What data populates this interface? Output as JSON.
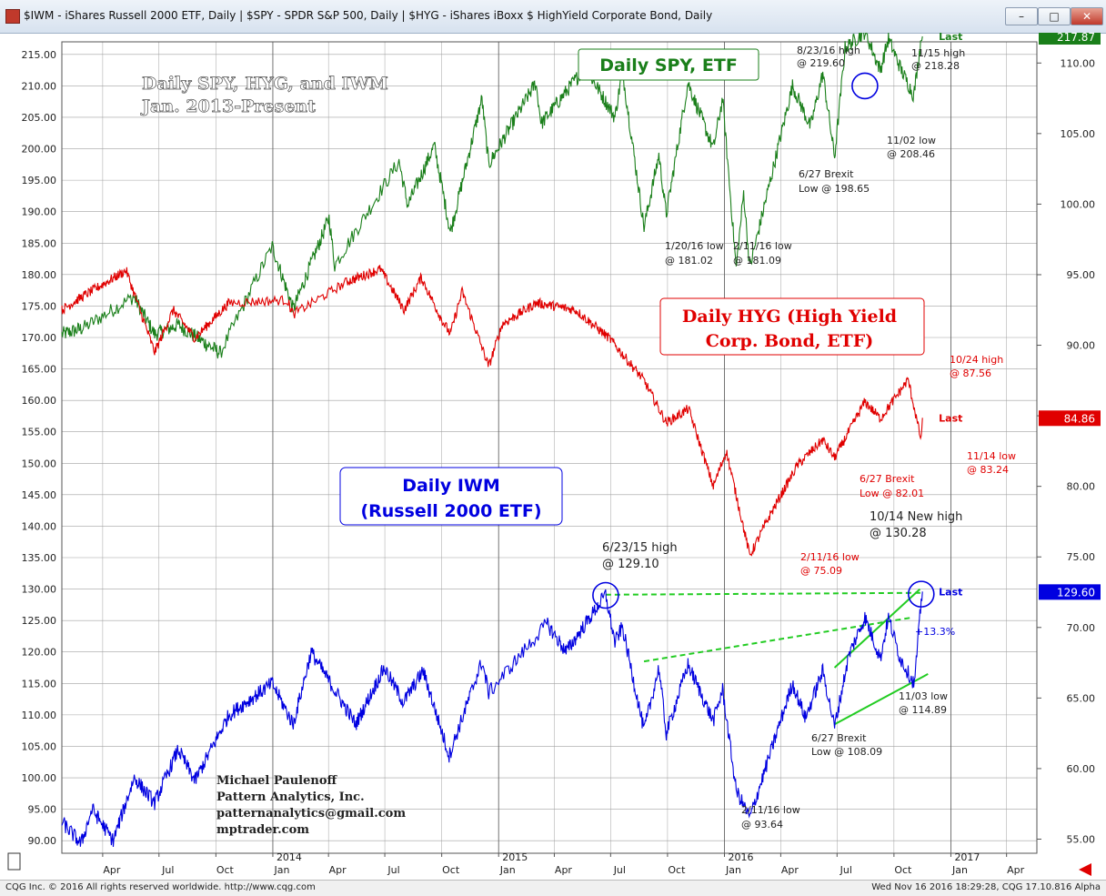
{
  "window": {
    "title": "$IWM - iShares Russell 2000 ETF, Daily  |  $SPY - SPDR S&P 500, Daily  |  $HYG - iShares iBoxx $ HighYield Corporate Bond, Daily",
    "buttons": {
      "minimize": "–",
      "maximize": "□",
      "close": "✕"
    }
  },
  "footer": {
    "left": "CQG Inc. © 2016 All rights reserved worldwide. http://www.cqg.com",
    "right": "Wed Nov 16 2016 18:29:28, CQG 17.10.816 Alpha"
  },
  "colors": {
    "spy": "#1a7f1a",
    "hyg": "#e00000",
    "iwm": "#0000e0",
    "guide": "#22cc22",
    "grid": "#a0a0a0"
  },
  "chart_data": {
    "type": "line",
    "main_title": [
      "Daily SPY, HYG, and IWM",
      "Jan. 2013-Present"
    ],
    "left_axis": {
      "ticks": [
        "215.00",
        "210.00",
        "205.00",
        "200.00",
        "195.00",
        "190.00",
        "185.00",
        "180.00",
        "175.00",
        "170.00",
        "165.00",
        "160.00",
        "155.00",
        "150.00",
        "145.00",
        "140.00",
        "135.00",
        "130.00",
        "125.00",
        "120.00",
        "115.00",
        "110.00",
        "105.00",
        "100.00",
        "95.00",
        "90.00"
      ],
      "range": [
        88,
        217
      ]
    },
    "right_axis": {
      "ticks": [
        "110.00",
        "105.00",
        "100.00",
        "95.00",
        "90.00",
        "85.00",
        "80.00",
        "75.00",
        "70.00",
        "65.00",
        "60.00",
        "55.00"
      ],
      "range": [
        54,
        111.5
      ]
    },
    "x_axis": {
      "month_ticks": [
        "Apr",
        "Jul",
        "Oct",
        "Jan",
        "Apr",
        "Jul",
        "Oct",
        "Jan",
        "Apr",
        "Jul",
        "Oct",
        "Jan",
        "Apr",
        "Jul",
        "Oct",
        "Jan",
        "Apr"
      ],
      "year_ticks": [
        "2014",
        "2015",
        "2016",
        "2017"
      ],
      "range": [
        "2013-01-25",
        "2017-05-20"
      ]
    },
    "series": [
      {
        "name": "Daily SPY, ETF",
        "axis": "left",
        "color": "#1a7f1a",
        "last_label": "Last",
        "last_value": "217.87",
        "points": [
          [
            "2013-01-25",
            170.5
          ],
          [
            "2013-03-01",
            171.5
          ],
          [
            "2013-05-21",
            176.5
          ],
          [
            "2013-06-24",
            170.5
          ],
          [
            "2013-08-01",
            172
          ],
          [
            "2013-10-08",
            167.5
          ],
          [
            "2013-12-31",
            184.5
          ],
          [
            "2014-02-03",
            174.5
          ],
          [
            "2014-04-02",
            189
          ],
          [
            "2014-04-11",
            181.5
          ],
          [
            "2014-07-24",
            198
          ],
          [
            "2014-08-07",
            191
          ],
          [
            "2014-09-19",
            200.5
          ],
          [
            "2014-10-15",
            186.7
          ],
          [
            "2014-12-05",
            208
          ],
          [
            "2014-12-16",
            197.5
          ],
          [
            "2015-03-02",
            210.5
          ],
          [
            "2015-03-11",
            204
          ],
          [
            "2015-05-21",
            213
          ],
          [
            "2015-07-08",
            205
          ],
          [
            "2015-07-20",
            212.5
          ],
          [
            "2015-08-24",
            187.5
          ],
          [
            "2015-09-17",
            199
          ],
          [
            "2015-09-29",
            189.5
          ],
          [
            "2015-11-03",
            210.5
          ],
          [
            "2015-12-14",
            200
          ],
          [
            "2015-12-29",
            208
          ],
          [
            "2016-01-20",
            181.02
          ],
          [
            "2016-02-01",
            193
          ],
          [
            "2016-02-11",
            181.09
          ],
          [
            "2016-04-20",
            210
          ],
          [
            "2016-05-19",
            203.5
          ],
          [
            "2016-06-08",
            212
          ],
          [
            "2016-06-27",
            198.65
          ],
          [
            "2016-07-14",
            216
          ],
          [
            "2016-08-15",
            218.6
          ],
          [
            "2016-09-09",
            212.5
          ],
          [
            "2016-09-22",
            217.5
          ],
          [
            "2016-10-13",
            212.5
          ],
          [
            "2016-11-02",
            208.46
          ],
          [
            "2016-11-15",
            218.28
          ],
          [
            "2016-11-16",
            217.87
          ]
        ]
      },
      {
        "name": "Daily HYG (High Yield Corp. Bond, ETF)",
        "axis": "right",
        "color": "#e00000",
        "last_label": "Last",
        "last_value": "84.86",
        "points": [
          [
            "2013-01-25",
            92.5
          ],
          [
            "2013-03-01",
            93.5
          ],
          [
            "2013-05-09",
            95.3
          ],
          [
            "2013-06-24",
            89.5
          ],
          [
            "2013-07-24",
            92.5
          ],
          [
            "2013-08-28",
            90.5
          ],
          [
            "2013-10-22",
            93
          ],
          [
            "2014-01-24",
            93.2
          ],
          [
            "2014-02-03",
            92.2
          ],
          [
            "2014-05-01",
            94.5
          ],
          [
            "2014-06-24",
            95.4
          ],
          [
            "2014-08-01",
            92.5
          ],
          [
            "2014-08-29",
            94.8
          ],
          [
            "2014-10-01",
            91.8
          ],
          [
            "2014-10-15",
            90.8
          ],
          [
            "2014-11-03",
            93.8
          ],
          [
            "2014-12-16",
            88.5
          ],
          [
            "2015-01-07",
            91.5
          ],
          [
            "2015-03-03",
            93
          ],
          [
            "2015-05-05",
            92.5
          ],
          [
            "2015-06-29",
            90.5
          ],
          [
            "2015-08-24",
            87.5
          ],
          [
            "2015-09-29",
            84.5
          ],
          [
            "2015-11-04",
            85.5
          ],
          [
            "2015-12-14",
            80
          ],
          [
            "2016-01-04",
            82.5
          ],
          [
            "2016-02-11",
            75.09
          ],
          [
            "2016-03-15",
            78
          ],
          [
            "2016-04-28",
            81.5
          ],
          [
            "2016-06-08",
            83.3
          ],
          [
            "2016-06-27",
            82.01
          ],
          [
            "2016-08-15",
            86
          ],
          [
            "2016-09-09",
            84.8
          ],
          [
            "2016-10-24",
            87.56
          ],
          [
            "2016-11-14",
            83.24
          ],
          [
            "2016-11-16",
            84.86
          ]
        ]
      },
      {
        "name": "Daily IWM (Russell 2000 ETF)",
        "axis": "left",
        "color": "#0000e0",
        "last_label": "Last",
        "last_value": "129.60",
        "points": [
          [
            "2013-01-25",
            93
          ],
          [
            "2013-02-25",
            89.5
          ],
          [
            "2013-03-15",
            95
          ],
          [
            "2013-04-18",
            90
          ],
          [
            "2013-05-22",
            100
          ],
          [
            "2013-06-24",
            96
          ],
          [
            "2013-08-01",
            104.5
          ],
          [
            "2013-08-28",
            99.5
          ],
          [
            "2013-10-22",
            110
          ],
          [
            "2013-12-31",
            115
          ],
          [
            "2014-02-03",
            108.5
          ],
          [
            "2014-03-04",
            120
          ],
          [
            "2014-05-15",
            108.5
          ],
          [
            "2014-06-30",
            117.5
          ],
          [
            "2014-07-31",
            112
          ],
          [
            "2014-09-01",
            117
          ],
          [
            "2014-10-13",
            103.5
          ],
          [
            "2014-12-05",
            118.5
          ],
          [
            "2014-12-16",
            113.5
          ],
          [
            "2015-03-20",
            124.5
          ],
          [
            "2015-04-20",
            120
          ],
          [
            "2015-06-23",
            129.1
          ],
          [
            "2015-07-08",
            121.5
          ],
          [
            "2015-07-20",
            124
          ],
          [
            "2015-08-24",
            107.5
          ],
          [
            "2015-09-17",
            117.5
          ],
          [
            "2015-09-29",
            107
          ],
          [
            "2015-11-03",
            118
          ],
          [
            "2015-12-14",
            109
          ],
          [
            "2015-12-29",
            114
          ],
          [
            "2016-01-20",
            98
          ],
          [
            "2016-02-11",
            93.64
          ],
          [
            "2016-04-20",
            115
          ],
          [
            "2016-05-11",
            109.5
          ],
          [
            "2016-06-08",
            117
          ],
          [
            "2016-06-27",
            108.09
          ],
          [
            "2016-07-20",
            119.5
          ],
          [
            "2016-08-15",
            125.5
          ],
          [
            "2016-09-09",
            119
          ],
          [
            "2016-09-22",
            125.5
          ],
          [
            "2016-10-11",
            119
          ],
          [
            "2016-11-03",
            114.89
          ],
          [
            "2016-11-14",
            128
          ],
          [
            "2016-11-16",
            129.6
          ]
        ]
      }
    ],
    "trend_lines": [
      {
        "axis": "left",
        "from": [
          "2015-06-23",
          129.1
        ],
        "to": [
          "2016-11-16",
          129.4
        ],
        "style": "dashed"
      },
      {
        "axis": "left",
        "from": [
          "2015-08-24",
          118.5
        ],
        "to": [
          "2016-11-01",
          125.5
        ],
        "style": "dashed"
      },
      {
        "axis": "left",
        "from": [
          "2016-06-27",
          117.5
        ],
        "to": [
          "2016-11-12",
          130
        ],
        "style": "solid"
      },
      {
        "axis": "left",
        "from": [
          "2016-06-27",
          108.5
        ],
        "to": [
          "2016-11-25",
          116.5
        ],
        "style": "solid"
      }
    ],
    "circles": [
      {
        "axis": "left",
        "at": [
          "2016-08-15",
          210
        ]
      },
      {
        "axis": "left",
        "at": [
          "2015-06-23",
          129
        ]
      },
      {
        "axis": "left",
        "at": [
          "2016-11-14",
          129.2
        ]
      }
    ],
    "annotations": {
      "spy_title": "Daily SPY, ETF",
      "hyg_title": [
        "Daily HYG (High Yield",
        "Corp. Bond, ETF)"
      ],
      "iwm_title": [
        "Daily IWM",
        "(Russell 2000 ETF)"
      ],
      "spy_high_prior": [
        "8/23/16 high",
        "@ 219.60"
      ],
      "spy_high_1115": [
        "11/15 high",
        "@ 218.28"
      ],
      "spy_low_1102": [
        "11/02 low",
        "@ 208.46"
      ],
      "spy_brexit": [
        "6/27 Brexit",
        "Low @ 198.65"
      ],
      "spy_low_0120": [
        "1/20/16 low",
        "@ 181.02"
      ],
      "spy_low_0211": [
        "2/11/16 low",
        "@ 181.09"
      ],
      "hyg_high": [
        "10/24 high",
        "@ 87.56"
      ],
      "hyg_low_1114": [
        "11/14 low",
        "@ 83.24"
      ],
      "hyg_brexit": [
        "6/27 Brexit",
        "Low @ 82.01"
      ],
      "hyg_low_0211": [
        "2/11/16 low",
        "@ 75.09"
      ],
      "iwm_high_prior": [
        "6/23/15 high",
        "@ 129.10"
      ],
      "iwm_new_high": [
        "10/14 New high",
        "@ 130.28"
      ],
      "iwm_pct": "+13.3%",
      "iwm_low_1103": [
        "11/03 low",
        "@ 114.89"
      ],
      "iwm_brexit": [
        "6/27 Brexit",
        "Low @ 108.09"
      ],
      "iwm_low_0211": [
        "2/11/16 low",
        "@ 93.64"
      ],
      "credits": [
        "Michael Paulenoff",
        "Pattern Analytics, Inc.",
        "patternanalytics@gmail.com",
        "mptrader.com"
      ]
    }
  }
}
